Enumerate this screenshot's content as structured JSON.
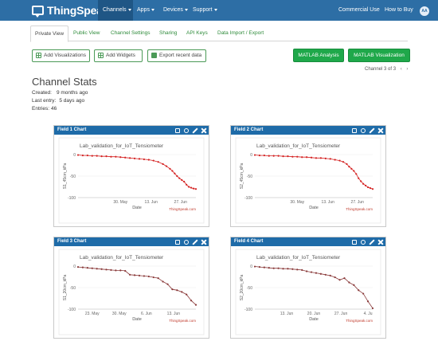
{
  "nav": {
    "brand": "ThingSpeak",
    "brand_tm": "™",
    "items": [
      {
        "label": "Channels"
      },
      {
        "label": "Apps"
      },
      {
        "label": "Devices"
      },
      {
        "label": "Support"
      }
    ],
    "right_items": [
      {
        "label": "Commercial Use"
      },
      {
        "label": "How to Buy"
      }
    ],
    "avatar": "AA"
  },
  "tabs": [
    {
      "label": "Private View"
    },
    {
      "label": "Public View"
    },
    {
      "label": "Channel Settings"
    },
    {
      "label": "Sharing"
    },
    {
      "label": "API Keys"
    },
    {
      "label": "Data Import / Export"
    }
  ],
  "actions": {
    "add_visualizations": "Add Visualizations",
    "add_widgets": "Add Widgets",
    "export": "Export recent data",
    "matlab_analysis": "MATLAB Analysis",
    "matlab_visualization": "MATLAB Visualization"
  },
  "pager": {
    "text": "Channel 3 of 3",
    "prev": "‹",
    "next": "›"
  },
  "stats": {
    "title": "Channel Stats",
    "created_label": "Created:",
    "created_value": "9 months ago",
    "last_entry_label": "Last entry:",
    "last_entry_value": "5 days ago",
    "entries_label": "Entries:",
    "entries_value": "46"
  },
  "colors": {
    "navbar": "#2d6ea5",
    "card_header": "#1e6ba8",
    "green_button": "#1fa84a",
    "line1": "#d42020",
    "line2": "#8a3a3a"
  },
  "chart_data": [
    {
      "type": "line",
      "header": "Field 1 Chart",
      "title": "Lab_validation_for_IoT_Tensiometer",
      "xlabel": "Date",
      "ylabel": "S1_45cm_kPa",
      "credit": "ThingSpeak.com",
      "ylim": [
        -100,
        0
      ],
      "yticks": [
        "0",
        "-50",
        "-100"
      ],
      "xticks": [
        {
          "label": "30. May",
          "pos": 0.36
        },
        {
          "label": "13. Jun",
          "pos": 0.62
        },
        {
          "label": "27. Jun",
          "pos": 0.87
        }
      ],
      "color": "#d42020",
      "x": [
        0,
        0.04,
        0.08,
        0.12,
        0.16,
        0.2,
        0.24,
        0.28,
        0.32,
        0.36,
        0.4,
        0.44,
        0.48,
        0.52,
        0.56,
        0.6,
        0.64,
        0.68,
        0.72,
        0.75,
        0.78,
        0.8,
        0.82,
        0.84,
        0.86,
        0.88,
        0.9,
        0.92,
        0.94,
        0.96,
        0.98,
        1
      ],
      "y": [
        -1,
        -2,
        -2,
        -3,
        -3,
        -4,
        -4,
        -5,
        -5,
        -6,
        -7,
        -8,
        -9,
        -10,
        -11,
        -12,
        -14,
        -17,
        -22,
        -27,
        -33,
        -38,
        -44,
        -50,
        -55,
        -59,
        -63,
        -70,
        -75,
        -77,
        -79,
        -80
      ]
    },
    {
      "type": "line",
      "header": "Field 2 Chart",
      "title": "Lab_validation_for_IoT_Tensiometer",
      "xlabel": "Date",
      "ylabel": "S2_45cm_kPa",
      "credit": "ThingSpeak.com",
      "ylim": [
        -100,
        0
      ],
      "yticks": [
        "0",
        "-50",
        "-100"
      ],
      "xticks": [
        {
          "label": "30. May",
          "pos": 0.36
        },
        {
          "label": "13. Jun",
          "pos": 0.62
        },
        {
          "label": "27. Jun",
          "pos": 0.87
        }
      ],
      "color": "#d42020",
      "x": [
        0,
        0.04,
        0.08,
        0.12,
        0.16,
        0.2,
        0.24,
        0.28,
        0.32,
        0.36,
        0.4,
        0.44,
        0.48,
        0.52,
        0.56,
        0.6,
        0.64,
        0.68,
        0.72,
        0.75,
        0.78,
        0.8,
        0.82,
        0.84,
        0.86,
        0.88,
        0.9,
        0.92,
        0.94,
        0.96,
        0.98,
        1
      ],
      "y": [
        -1,
        -2,
        -2,
        -3,
        -3,
        -3,
        -4,
        -4,
        -5,
        -5,
        -6,
        -6,
        -7,
        -8,
        -8,
        -9,
        -10,
        -12,
        -14,
        -17,
        -22,
        -28,
        -33,
        -38,
        -45,
        -55,
        -62,
        -68,
        -72,
        -76,
        -78,
        -80
      ]
    },
    {
      "type": "line",
      "header": "Field 3 Chart",
      "title": "Lab_validation_for_IoT_Tensiometer",
      "xlabel": "Date",
      "ylabel": "S1_20cm_kPa",
      "credit": "ThingSpeak.com",
      "ylim": [
        -100,
        0
      ],
      "yticks": [
        "0",
        "-50",
        "-100"
      ],
      "xticks": [
        {
          "label": "23. May",
          "pos": 0.12
        },
        {
          "label": "30. May",
          "pos": 0.35
        },
        {
          "label": "6. Jun",
          "pos": 0.58
        },
        {
          "label": "13. Jun",
          "pos": 0.81
        }
      ],
      "color": "#8a3a3a",
      "x": [
        0,
        0.04,
        0.08,
        0.12,
        0.16,
        0.2,
        0.24,
        0.28,
        0.32,
        0.36,
        0.4,
        0.44,
        0.48,
        0.52,
        0.56,
        0.6,
        0.64,
        0.68,
        0.72,
        0.76,
        0.8,
        0.84,
        0.88,
        0.92,
        0.96,
        1
      ],
      "y": [
        -2,
        -3,
        -4,
        -5,
        -6,
        -7,
        -8,
        -9,
        -10,
        -10,
        -11,
        -20,
        -21,
        -22,
        -23,
        -24,
        -26,
        -28,
        -36,
        -42,
        -54,
        -56,
        -60,
        -66,
        -80,
        -90
      ]
    },
    {
      "type": "line",
      "header": "Field 4 Chart",
      "title": "Lab_validation_for_IoT_Tensiometer",
      "xlabel": "Date",
      "ylabel": "S2_20cm_kPa",
      "credit": "ThingSpeak.com",
      "ylim": [
        -100,
        0
      ],
      "yticks": [
        "0",
        "-50",
        "-100"
      ],
      "xticks": [
        {
          "label": "13. Jun",
          "pos": 0.27
        },
        {
          "label": "20. Jun",
          "pos": 0.5
        },
        {
          "label": "27. Jun",
          "pos": 0.73
        },
        {
          "label": "4. Ju",
          "pos": 0.96
        }
      ],
      "color": "#8a3a3a",
      "x": [
        0,
        0.04,
        0.08,
        0.12,
        0.16,
        0.2,
        0.24,
        0.28,
        0.32,
        0.36,
        0.4,
        0.44,
        0.48,
        0.52,
        0.56,
        0.6,
        0.64,
        0.68,
        0.72,
        0.76,
        0.8,
        0.84,
        0.88,
        0.92,
        0.96,
        1
      ],
      "y": [
        -1,
        -2,
        -3,
        -4,
        -5,
        -5,
        -6,
        -6,
        -7,
        -8,
        -9,
        -12,
        -14,
        -16,
        -18,
        -20,
        -22,
        -26,
        -32,
        -28,
        -38,
        -44,
        -56,
        -64,
        -82,
        -98
      ]
    }
  ]
}
